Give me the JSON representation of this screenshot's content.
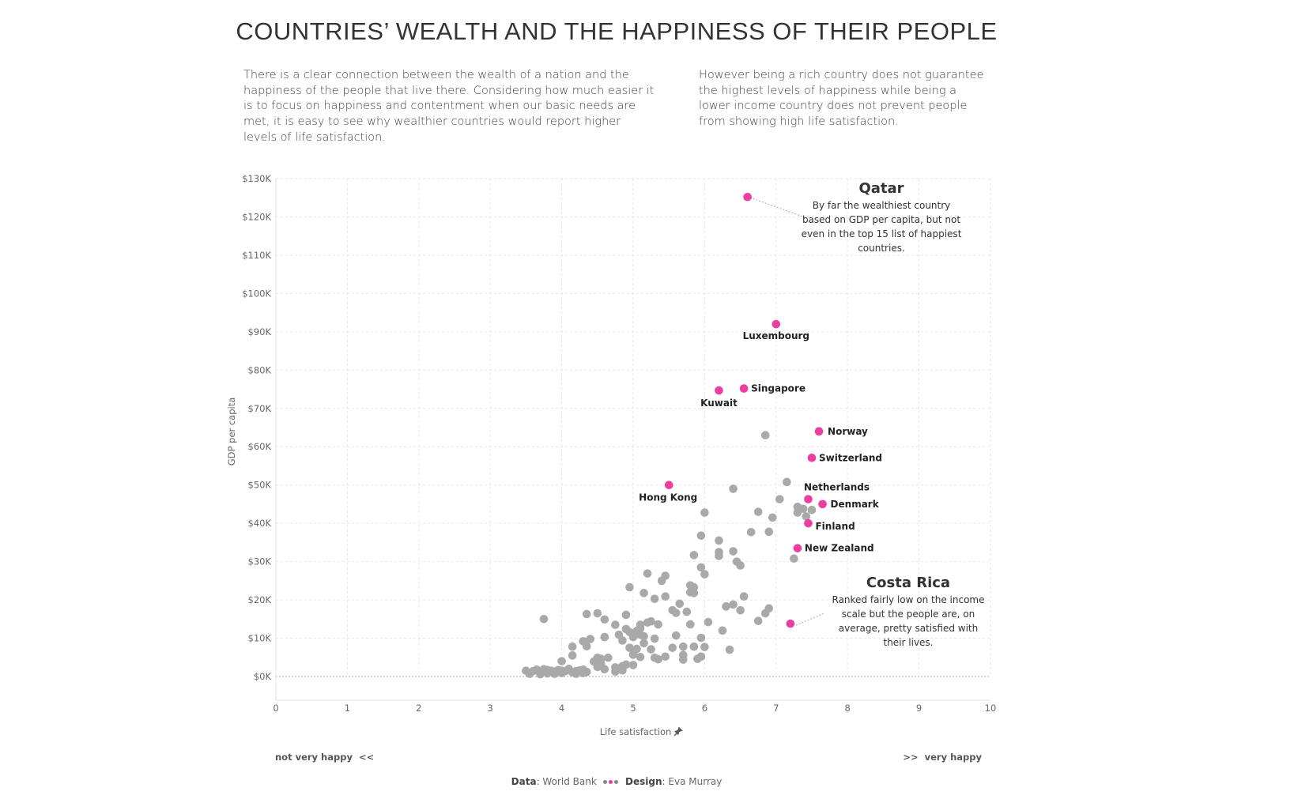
{
  "title": "COUNTRIES’ WEALTH AND THE HAPPINESS OF THEIR PEOPLE",
  "intro_left": "There is a clear connection between the wealth of a nation and the happiness of the people that live there. Considering how much easier it is to focus on happiness and contentment when our basic needs are met, it is easy to see why wealthier countries would report higher levels of life satisfaction.",
  "intro_right": "However being a rich country does not guarantee the highest levels of happiness while being a lower income country does not prevent people from showing high life satisfaction.",
  "colors": {
    "highlight": "#ec3da0",
    "other": "#a9a9a9",
    "grid": "#e6e6e6"
  },
  "chart_data": {
    "type": "scatter",
    "xlabel": "Life satisfaction",
    "ylabel": "GDP per capita",
    "xlim": [
      0,
      10
    ],
    "ylim": [
      0,
      130000
    ],
    "x_ticks": [
      0,
      1,
      2,
      3,
      4,
      5,
      6,
      7,
      8,
      9,
      10
    ],
    "y_ticks": [
      0,
      10000,
      20000,
      30000,
      40000,
      50000,
      60000,
      70000,
      80000,
      90000,
      100000,
      110000,
      120000,
      130000
    ],
    "y_tick_labels": [
      "$0K",
      "$10K",
      "$20K",
      "$30K",
      "$40K",
      "$50K",
      "$60K",
      "$70K",
      "$80K",
      "$90K",
      "$100K",
      "$110K",
      "$120K",
      "$130K"
    ],
    "highlighted": [
      {
        "name": "Qatar",
        "x": 6.6,
        "y": 125200,
        "label": ""
      },
      {
        "name": "Luxembourg",
        "x": 7.0,
        "y": 92000,
        "label": "Luxembourg"
      },
      {
        "name": "Singapore",
        "x": 6.55,
        "y": 75200,
        "label": "Singapore"
      },
      {
        "name": "Kuwait",
        "x": 6.2,
        "y": 74700,
        "label": "Kuwait"
      },
      {
        "name": "Norway",
        "x": 7.6,
        "y": 64000,
        "label": "Norway"
      },
      {
        "name": "Switzerland",
        "x": 7.5,
        "y": 57100,
        "label": "Switzerland"
      },
      {
        "name": "Hong Kong",
        "x": 5.5,
        "y": 50000,
        "label": "Hong Kong"
      },
      {
        "name": "Netherlands",
        "x": 7.45,
        "y": 46300,
        "label": "Netherlands"
      },
      {
        "name": "Denmark",
        "x": 7.65,
        "y": 45000,
        "label": "Denmark"
      },
      {
        "name": "Finland",
        "x": 7.45,
        "y": 40000,
        "label": "Finland"
      },
      {
        "name": "New Zealand",
        "x": 7.3,
        "y": 33500,
        "label": "New Zealand"
      },
      {
        "name": "Costa Rica",
        "x": 7.2,
        "y": 13800,
        "label": ""
      }
    ],
    "others": [
      [
        6.85,
        63000
      ],
      [
        7.15,
        50800
      ],
      [
        6.4,
        49000
      ],
      [
        7.05,
        46300
      ],
      [
        7.3,
        44300
      ],
      [
        7.38,
        43800
      ],
      [
        7.5,
        43500
      ],
      [
        7.3,
        42800
      ],
      [
        7.42,
        41800
      ],
      [
        6.75,
        43000
      ],
      [
        6.95,
        41500
      ],
      [
        6.0,
        42800
      ],
      [
        6.65,
        37700
      ],
      [
        6.9,
        37800
      ],
      [
        5.95,
        36800
      ],
      [
        6.2,
        35500
      ],
      [
        6.4,
        32700
      ],
      [
        6.2,
        32500
      ],
      [
        6.2,
        31500
      ],
      [
        5.85,
        31700
      ],
      [
        6.45,
        30000
      ],
      [
        6.5,
        29000
      ],
      [
        5.95,
        28500
      ],
      [
        6.0,
        26700
      ],
      [
        7.25,
        30800
      ],
      [
        5.2,
        26900
      ],
      [
        5.45,
        26300
      ],
      [
        5.4,
        25000
      ],
      [
        5.8,
        23800
      ],
      [
        5.85,
        23300
      ],
      [
        4.95,
        23300
      ],
      [
        5.8,
        22000
      ],
      [
        5.85,
        21800
      ],
      [
        5.15,
        21800
      ],
      [
        5.3,
        20300
      ],
      [
        5.45,
        20900
      ],
      [
        5.65,
        19000
      ],
      [
        5.55,
        17300
      ],
      [
        5.6,
        16600
      ],
      [
        5.75,
        16900
      ],
      [
        6.3,
        18300
      ],
      [
        6.4,
        18800
      ],
      [
        6.5,
        17300
      ],
      [
        6.55,
        20900
      ],
      [
        6.85,
        16500
      ],
      [
        6.9,
        17800
      ],
      [
        6.75,
        14500
      ],
      [
        4.35,
        16300
      ],
      [
        4.5,
        16500
      ],
      [
        3.75,
        15000
      ],
      [
        4.6,
        14900
      ],
      [
        4.9,
        16100
      ],
      [
        4.75,
        13500
      ],
      [
        5.1,
        13500
      ],
      [
        5.2,
        14100
      ],
      [
        5.25,
        14400
      ],
      [
        5.35,
        13600
      ],
      [
        5.8,
        13600
      ],
      [
        6.05,
        14200
      ],
      [
        6.25,
        12000
      ],
      [
        4.9,
        12400
      ],
      [
        4.95,
        11600
      ],
      [
        5.05,
        11900
      ],
      [
        5.1,
        12600
      ],
      [
        5.1,
        10900
      ],
      [
        4.8,
        10900
      ],
      [
        4.85,
        9400
      ],
      [
        4.6,
        10300
      ],
      [
        5.0,
        10300
      ],
      [
        5.15,
        10500
      ],
      [
        5.3,
        9900
      ],
      [
        5.6,
        10700
      ],
      [
        5.95,
        10100
      ],
      [
        5.15,
        8700
      ],
      [
        4.4,
        9800
      ],
      [
        4.3,
        9200
      ],
      [
        4.15,
        7800
      ],
      [
        4.35,
        7900
      ],
      [
        4.95,
        7500
      ],
      [
        5.05,
        7200
      ],
      [
        5.25,
        7100
      ],
      [
        5.55,
        7500
      ],
      [
        5.7,
        7800
      ],
      [
        5.85,
        7800
      ],
      [
        6.0,
        7700
      ],
      [
        6.35,
        7000
      ],
      [
        4.15,
        5500
      ],
      [
        4.5,
        4900
      ],
      [
        4.55,
        4600
      ],
      [
        4.65,
        4900
      ],
      [
        5.0,
        5700
      ],
      [
        5.1,
        5100
      ],
      [
        5.3,
        4900
      ],
      [
        5.45,
        5200
      ],
      [
        5.7,
        5600
      ],
      [
        5.9,
        4600
      ],
      [
        5.35,
        4500
      ],
      [
        5.7,
        4400
      ],
      [
        5.95,
        5200
      ],
      [
        4.0,
        4000
      ],
      [
        4.45,
        3900
      ],
      [
        4.5,
        2500
      ],
      [
        4.55,
        3300
      ],
      [
        4.75,
        2400
      ],
      [
        4.85,
        2700
      ],
      [
        4.9,
        3100
      ],
      [
        5.0,
        3000
      ],
      [
        4.6,
        1900
      ],
      [
        4.75,
        1300
      ],
      [
        4.85,
        1600
      ],
      [
        3.5,
        1500
      ],
      [
        3.6,
        1400
      ],
      [
        3.65,
        1800
      ],
      [
        3.7,
        1200
      ],
      [
        3.75,
        1900
      ],
      [
        3.8,
        1700
      ],
      [
        3.85,
        1500
      ],
      [
        3.9,
        1300
      ],
      [
        3.95,
        1700
      ],
      [
        4.0,
        1500
      ],
      [
        4.05,
        1400
      ],
      [
        4.1,
        2000
      ],
      [
        4.15,
        1100
      ],
      [
        4.2,
        1400
      ],
      [
        4.25,
        1600
      ],
      [
        4.3,
        1800
      ],
      [
        4.35,
        1200
      ],
      [
        3.55,
        700
      ],
      [
        3.7,
        600
      ],
      [
        3.8,
        800
      ],
      [
        3.9,
        700
      ],
      [
        4.0,
        900
      ],
      [
        4.2,
        700
      ],
      [
        4.3,
        900
      ]
    ],
    "annotations": [
      {
        "title": "Qatar",
        "lines": [
          "By far the wealthiest country",
          "based on GDP per capita, but not",
          "even in the top 15 list of happiest",
          "countries."
        ]
      },
      {
        "title": "Costa Rica",
        "lines": [
          "Ranked fairly low on the income",
          "scale but the people are, on",
          "average, pretty satisfied with",
          "their lives."
        ]
      }
    ],
    "hints": {
      "left": "not very happy  <<",
      "right": ">>  very happy"
    }
  },
  "footer": {
    "data_label": "Data",
    "data_value": "World Bank",
    "design_label": "Design",
    "design_value": "Eva Murray"
  }
}
